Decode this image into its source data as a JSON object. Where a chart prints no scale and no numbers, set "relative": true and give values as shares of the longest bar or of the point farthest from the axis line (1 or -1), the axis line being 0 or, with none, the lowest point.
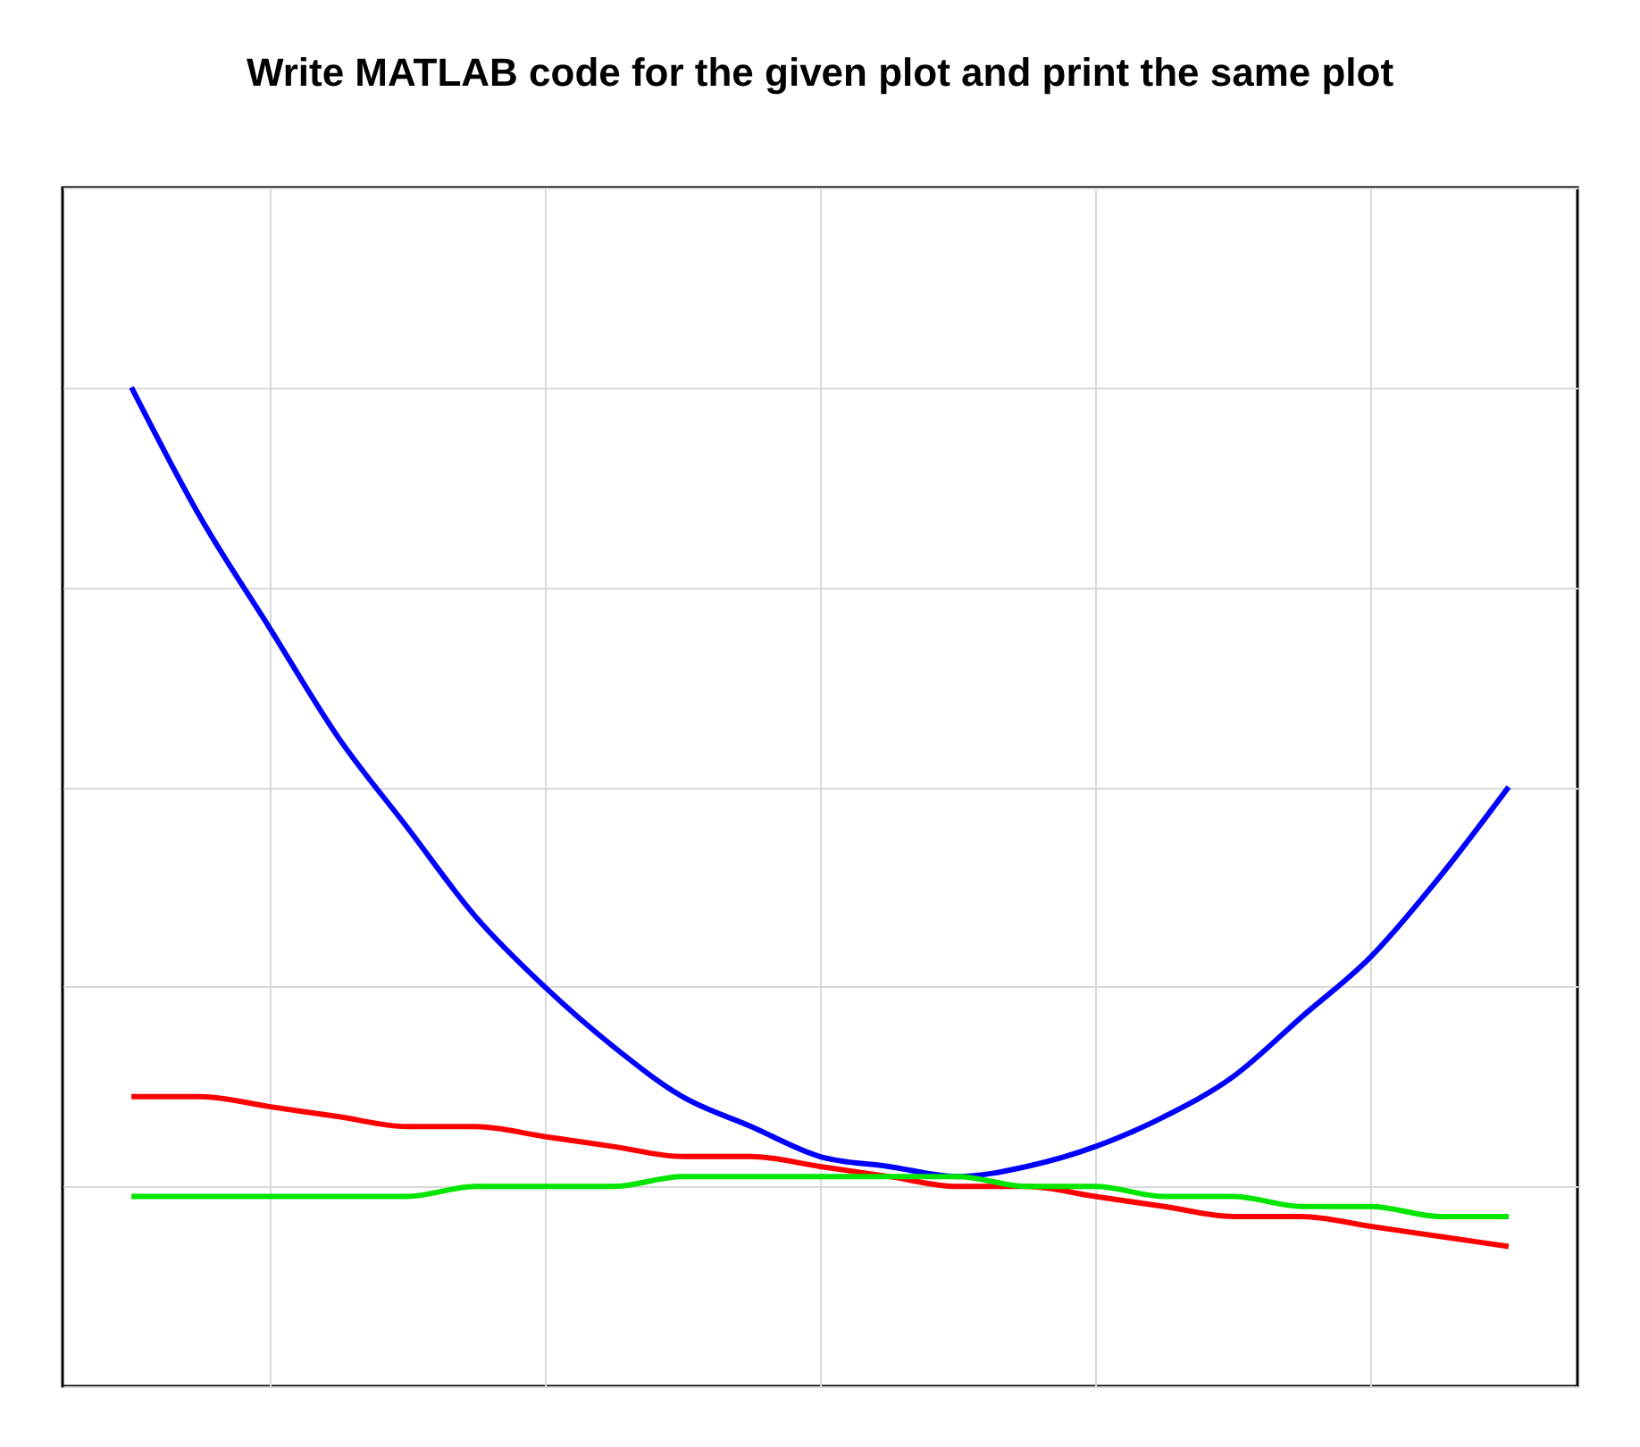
{
  "chart_data": {
    "type": "line",
    "title": "Write MATLAB code for the given plot and print the same plot",
    "relative": true,
    "grid": true,
    "categories": [
      null,
      null,
      null,
      null,
      null,
      null,
      null,
      null,
      null,
      null,
      null,
      null,
      null,
      null,
      null,
      null,
      null,
      null,
      null,
      null,
      null
    ],
    "series": [
      {
        "color": "#0000ff",
        "values": [
          1.0,
          0.87,
          0.76,
          0.65,
          0.56,
          0.47,
          0.4,
          0.34,
          0.29,
          0.26,
          0.23,
          0.22,
          0.21,
          0.22,
          0.24,
          0.27,
          0.31,
          0.37,
          0.43,
          0.51,
          0.6
        ]
      },
      {
        "color": "#ff0000",
        "values": [
          0.29,
          0.29,
          0.28,
          0.27,
          0.26,
          0.26,
          0.25,
          0.24,
          0.23,
          0.23,
          0.22,
          0.21,
          0.2,
          0.2,
          0.19,
          0.18,
          0.17,
          0.17,
          0.16,
          0.15,
          0.14
        ]
      },
      {
        "color": "#00e600",
        "values": [
          0.19,
          0.19,
          0.19,
          0.19,
          0.19,
          0.2,
          0.2,
          0.2,
          0.21,
          0.21,
          0.21,
          0.21,
          0.21,
          0.2,
          0.2,
          0.19,
          0.19,
          0.18,
          0.18,
          0.17,
          0.17
        ]
      }
    ]
  }
}
